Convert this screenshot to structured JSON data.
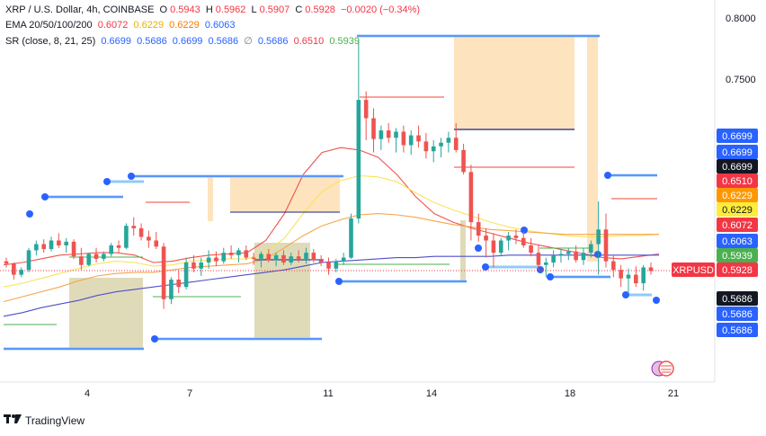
{
  "header": {
    "symbol": "XRP / U.S. Dollar, 4h, COINBASE",
    "ohlc": [
      {
        "label": "O",
        "value": "0.5943"
      },
      {
        "label": "H",
        "value": "0.5962"
      },
      {
        "label": "L",
        "value": "0.5907"
      },
      {
        "label": "C",
        "value": "0.5928"
      }
    ],
    "change": "−0.0020 (−0.34%)",
    "ema_label": "EMA 20/50/100/200",
    "ema_values": [
      "0.6072",
      "0.6229",
      "0.6229",
      "0.6063"
    ],
    "sr_label": "SR (close, 8, 21, 25)",
    "sr_values": [
      "0.6699",
      "0.5686",
      "0.6699",
      "0.5686",
      "∅",
      "0.5686",
      "0.6510",
      "0.5939"
    ]
  },
  "branding": {
    "logo_text": "TradingView"
  },
  "colors": {
    "bull": "#26a69a",
    "bear": "#ef5350",
    "ema20": "#ef5350",
    "ema50": "#f9e45a",
    "ema100": "#f5a54a",
    "ema200": "#4f4fc8",
    "sr_blue": "#2962ff",
    "sr_light": "#90caf9",
    "sr_red": "#f44336",
    "sr_green": "#4caf50",
    "zone_orange": "#fcd9a8",
    "zone_olive": "#d4cfa2",
    "price_badge": "#f23645"
  },
  "chart_data": {
    "type": "candlestick",
    "ylim": [
      0.545,
      0.805
    ],
    "y_ticks": [
      "0.8000",
      "0.7500"
    ],
    "x_ticks": [
      "4",
      "7",
      "11",
      "14",
      "18",
      "21"
    ],
    "symbol_label": "XRPUSD",
    "price_labels": [
      {
        "text": "0.6699",
        "bg": "#2962ff",
        "fg": "#ffffff"
      },
      {
        "text": "0.6699",
        "bg": "#2962ff",
        "fg": "#ffffff"
      },
      {
        "text": "0.6699",
        "bg": "#131722",
        "fg": "#ffffff"
      },
      {
        "text": "0.6510",
        "bg": "#f23645",
        "fg": "#ffffff"
      },
      {
        "text": "0.6229",
        "bg": "#ff9800",
        "fg": "#ffffff"
      },
      {
        "text": "0.6229",
        "bg": "#ffeb3b",
        "fg": "#131722"
      },
      {
        "text": "0.6072",
        "bg": "#f23645",
        "fg": "#ffffff"
      },
      {
        "text": "0.6063",
        "bg": "#2962ff",
        "fg": "#ffffff"
      },
      {
        "text": "0.5939",
        "bg": "#4caf50",
        "fg": "#ffffff"
      },
      {
        "text": "0.5928",
        "bg": "#f23645",
        "fg": "#ffffff",
        "symbol": true
      },
      {
        "text": "0.5686",
        "bg": "#131722",
        "fg": "#ffffff"
      },
      {
        "text": "0.5686",
        "bg": "#2962ff",
        "fg": "#ffffff"
      },
      {
        "text": "0.5686",
        "bg": "#2962ff",
        "fg": "#ffffff"
      }
    ],
    "candles": [
      [
        0.601,
        0.604,
        0.596,
        0.599
      ],
      [
        0.599,
        0.6,
        0.586,
        0.59
      ],
      [
        0.59,
        0.596,
        0.588,
        0.594
      ],
      [
        0.594,
        0.612,
        0.592,
        0.61
      ],
      [
        0.61,
        0.618,
        0.606,
        0.615
      ],
      [
        0.615,
        0.619,
        0.608,
        0.611
      ],
      [
        0.611,
        0.621,
        0.609,
        0.618
      ],
      [
        0.618,
        0.624,
        0.612,
        0.614
      ],
      [
        0.614,
        0.62,
        0.608,
        0.617
      ],
      [
        0.617,
        0.619,
        0.603,
        0.605
      ],
      [
        0.605,
        0.612,
        0.594,
        0.598
      ],
      [
        0.598,
        0.608,
        0.597,
        0.607
      ],
      [
        0.607,
        0.612,
        0.6,
        0.603
      ],
      [
        0.603,
        0.609,
        0.601,
        0.607
      ],
      [
        0.607,
        0.616,
        0.605,
        0.614
      ],
      [
        0.614,
        0.618,
        0.608,
        0.612
      ],
      [
        0.612,
        0.632,
        0.611,
        0.63
      ],
      [
        0.63,
        0.637,
        0.622,
        0.628
      ],
      [
        0.628,
        0.632,
        0.618,
        0.621
      ],
      [
        0.621,
        0.626,
        0.612,
        0.618
      ],
      [
        0.618,
        0.625,
        0.611,
        0.613
      ],
      [
        0.613,
        0.616,
        0.562,
        0.57
      ],
      [
        0.57,
        0.588,
        0.566,
        0.586
      ],
      [
        0.586,
        0.594,
        0.575,
        0.58
      ],
      [
        0.58,
        0.604,
        0.578,
        0.6
      ],
      [
        0.6,
        0.606,
        0.592,
        0.595
      ],
      [
        0.595,
        0.604,
        0.589,
        0.6
      ],
      [
        0.6,
        0.61,
        0.595,
        0.604
      ],
      [
        0.604,
        0.609,
        0.597,
        0.601
      ],
      [
        0.601,
        0.612,
        0.599,
        0.608
      ],
      [
        0.608,
        0.614,
        0.603,
        0.606
      ],
      [
        0.606,
        0.612,
        0.6,
        0.61
      ],
      [
        0.61,
        0.614,
        0.602,
        0.604
      ],
      [
        0.604,
        0.608,
        0.598,
        0.603
      ],
      [
        0.603,
        0.609,
        0.596,
        0.607
      ],
      [
        0.607,
        0.611,
        0.6,
        0.602
      ],
      [
        0.602,
        0.608,
        0.597,
        0.606
      ],
      [
        0.606,
        0.61,
        0.598,
        0.6
      ],
      [
        0.6,
        0.608,
        0.598,
        0.605
      ],
      [
        0.605,
        0.61,
        0.6,
        0.603
      ],
      [
        0.603,
        0.612,
        0.599,
        0.608
      ],
      [
        0.608,
        0.611,
        0.6,
        0.602
      ],
      [
        0.602,
        0.606,
        0.597,
        0.6
      ],
      [
        0.6,
        0.604,
        0.59,
        0.595
      ],
      [
        0.595,
        0.603,
        0.592,
        0.601
      ],
      [
        0.601,
        0.608,
        0.598,
        0.604
      ],
      [
        0.604,
        0.64,
        0.603,
        0.636
      ],
      [
        0.636,
        0.782,
        0.632,
        0.733
      ],
      [
        0.733,
        0.74,
        0.7,
        0.718
      ],
      [
        0.718,
        0.726,
        0.69,
        0.701
      ],
      [
        0.701,
        0.712,
        0.692,
        0.708
      ],
      [
        0.708,
        0.714,
        0.698,
        0.702
      ],
      [
        0.702,
        0.71,
        0.69,
        0.707
      ],
      [
        0.707,
        0.712,
        0.69,
        0.696
      ],
      [
        0.696,
        0.708,
        0.688,
        0.704
      ],
      [
        0.704,
        0.712,
        0.694,
        0.699
      ],
      [
        0.699,
        0.706,
        0.685,
        0.691
      ],
      [
        0.691,
        0.7,
        0.682,
        0.695
      ],
      [
        0.695,
        0.702,
        0.686,
        0.698
      ],
      [
        0.698,
        0.707,
        0.69,
        0.702
      ],
      [
        0.702,
        0.714,
        0.69,
        0.692
      ],
      [
        0.692,
        0.697,
        0.672,
        0.674
      ],
      [
        0.674,
        0.68,
        0.618,
        0.633
      ],
      [
        0.633,
        0.64,
        0.617,
        0.622
      ],
      [
        0.622,
        0.628,
        0.604,
        0.618
      ],
      [
        0.618,
        0.624,
        0.596,
        0.608
      ],
      [
        0.608,
        0.62,
        0.605,
        0.618
      ],
      [
        0.618,
        0.625,
        0.61,
        0.622
      ],
      [
        0.622,
        0.627,
        0.615,
        0.62
      ],
      [
        0.62,
        0.625,
        0.612,
        0.614
      ],
      [
        0.614,
        0.62,
        0.605,
        0.608
      ],
      [
        0.608,
        0.614,
        0.594,
        0.598
      ],
      [
        0.598,
        0.604,
        0.588,
        0.6
      ],
      [
        0.6,
        0.61,
        0.596,
        0.606
      ],
      [
        0.606,
        0.611,
        0.6,
        0.607
      ],
      [
        0.607,
        0.612,
        0.602,
        0.609
      ],
      [
        0.609,
        0.614,
        0.6,
        0.602
      ],
      [
        0.602,
        0.612,
        0.598,
        0.608
      ],
      [
        0.608,
        0.618,
        0.604,
        0.615
      ],
      [
        0.615,
        0.65,
        0.59,
        0.627
      ],
      [
        0.627,
        0.64,
        0.596,
        0.601
      ],
      [
        0.601,
        0.606,
        0.588,
        0.594
      ],
      [
        0.594,
        0.598,
        0.58,
        0.587
      ],
      [
        0.587,
        0.595,
        0.575,
        0.59
      ],
      [
        0.59,
        0.597,
        0.58,
        0.583
      ],
      [
        0.583,
        0.598,
        0.577,
        0.596
      ],
      [
        0.596,
        0.6,
        0.59,
        0.593
      ]
    ],
    "ema_series": [
      {
        "name": "EMA 20",
        "values": [
          0.598,
          0.6,
          0.603,
          0.606,
          0.607,
          0.608,
          0.608,
          0.606,
          0.6,
          0.601,
          0.604,
          0.606,
          0.607,
          0.608,
          0.618,
          0.64,
          0.672,
          0.69,
          0.694,
          0.692,
          0.686,
          0.672,
          0.654,
          0.64,
          0.633,
          0.628,
          0.624,
          0.62,
          0.616,
          0.613,
          0.61,
          0.607,
          0.604,
          0.603,
          0.605,
          0.607
        ]
      },
      {
        "name": "EMA 50",
        "values": [
          0.58,
          0.583,
          0.587,
          0.591,
          0.595,
          0.599,
          0.601,
          0.6,
          0.597,
          0.598,
          0.601,
          0.602,
          0.603,
          0.603,
          0.608,
          0.62,
          0.64,
          0.658,
          0.667,
          0.671,
          0.67,
          0.666,
          0.657,
          0.649,
          0.643,
          0.638,
          0.633,
          0.629,
          0.626,
          0.624,
          0.622,
          0.621,
          0.621,
          0.622,
          0.622,
          0.623
        ]
      },
      {
        "name": "EMA 100",
        "values": [
          0.568,
          0.572,
          0.576,
          0.58,
          0.585,
          0.589,
          0.591,
          0.592,
          0.592,
          0.594,
          0.596,
          0.597,
          0.598,
          0.599,
          0.603,
          0.612,
          0.622,
          0.63,
          0.635,
          0.639,
          0.64,
          0.639,
          0.637,
          0.634,
          0.631,
          0.629,
          0.627,
          0.626,
          0.625,
          0.624,
          0.623,
          0.623,
          0.623,
          0.623,
          0.623,
          0.623
        ]
      },
      {
        "name": "EMA 200",
        "values": [
          0.556,
          0.559,
          0.563,
          0.566,
          0.569,
          0.573,
          0.576,
          0.578,
          0.58,
          0.582,
          0.584,
          0.586,
          0.588,
          0.59,
          0.592,
          0.594,
          0.597,
          0.6,
          0.601,
          0.602,
          0.603,
          0.604,
          0.604,
          0.605,
          0.605,
          0.605,
          0.605,
          0.606,
          0.606,
          0.606,
          0.606,
          0.606,
          0.606,
          0.606,
          0.606,
          0.606
        ]
      }
    ]
  }
}
